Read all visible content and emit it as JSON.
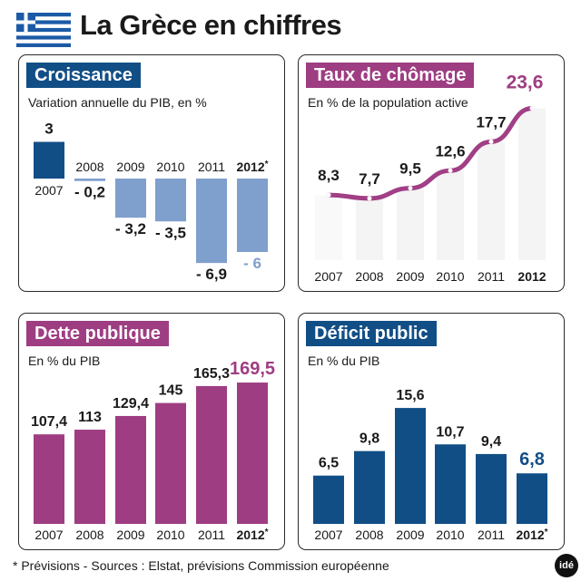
{
  "title": "La Grèce en chiffres",
  "footnote": "* Prévisions - Sources : Elstat, prévisions Commission européenne",
  "logo_text": "idé",
  "colors": {
    "blue": "#124e86",
    "light_blue": "#7f9fcd",
    "purple": "#9e3d82",
    "purple_line": "#a13f86",
    "pale_column": "#ebebeb",
    "text": "#1a1a1a",
    "flag_blue": "#1c5aa6"
  },
  "chart_data": [
    {
      "id": "croissance",
      "type": "bar",
      "title": "Croissance",
      "subtitle": "Variation annuelle du PIB, en %",
      "categories": [
        "2007",
        "2008",
        "2009",
        "2010",
        "2011",
        "2012*"
      ],
      "values": [
        3,
        -0.2,
        -3.2,
        -3.5,
        -6.9,
        -6
      ],
      "value_labels": [
        "3",
        "- 0,2",
        "- 3,2",
        "- 3,5",
        "- 6,9",
        "- 6"
      ],
      "forecast_index": 5
    },
    {
      "id": "chomage",
      "type": "line",
      "title": "Taux de chômage",
      "subtitle": "En % de la population active",
      "categories": [
        "2007",
        "2008",
        "2009",
        "2010",
        "2011",
        "2012"
      ],
      "values": [
        8.3,
        7.7,
        9.5,
        12.6,
        17.7,
        23.6
      ],
      "value_labels": [
        "8,3",
        "7,7",
        "9,5",
        "12,6",
        "17,7",
        "23,6"
      ],
      "forecast_index": 5
    },
    {
      "id": "dette",
      "type": "bar",
      "title": "Dette publique",
      "subtitle": "En % du PIB",
      "categories": [
        "2007",
        "2008",
        "2009",
        "2010",
        "2011",
        "2012*"
      ],
      "values": [
        107.4,
        113,
        129.4,
        145,
        165.3,
        169.5
      ],
      "value_labels": [
        "107,4",
        "113",
        "129,4",
        "145",
        "165,3",
        "169,5"
      ],
      "forecast_index": 5
    },
    {
      "id": "deficit",
      "type": "bar",
      "title": "Déficit public",
      "subtitle": "En % du PIB",
      "categories": [
        "2007",
        "2008",
        "2009",
        "2010",
        "2011",
        "2012*"
      ],
      "values": [
        6.5,
        9.8,
        15.6,
        10.7,
        9.4,
        6.8
      ],
      "value_labels": [
        "6,5",
        "9,8",
        "15,6",
        "10,7",
        "9,4",
        "6,8"
      ],
      "forecast_index": 5
    }
  ]
}
